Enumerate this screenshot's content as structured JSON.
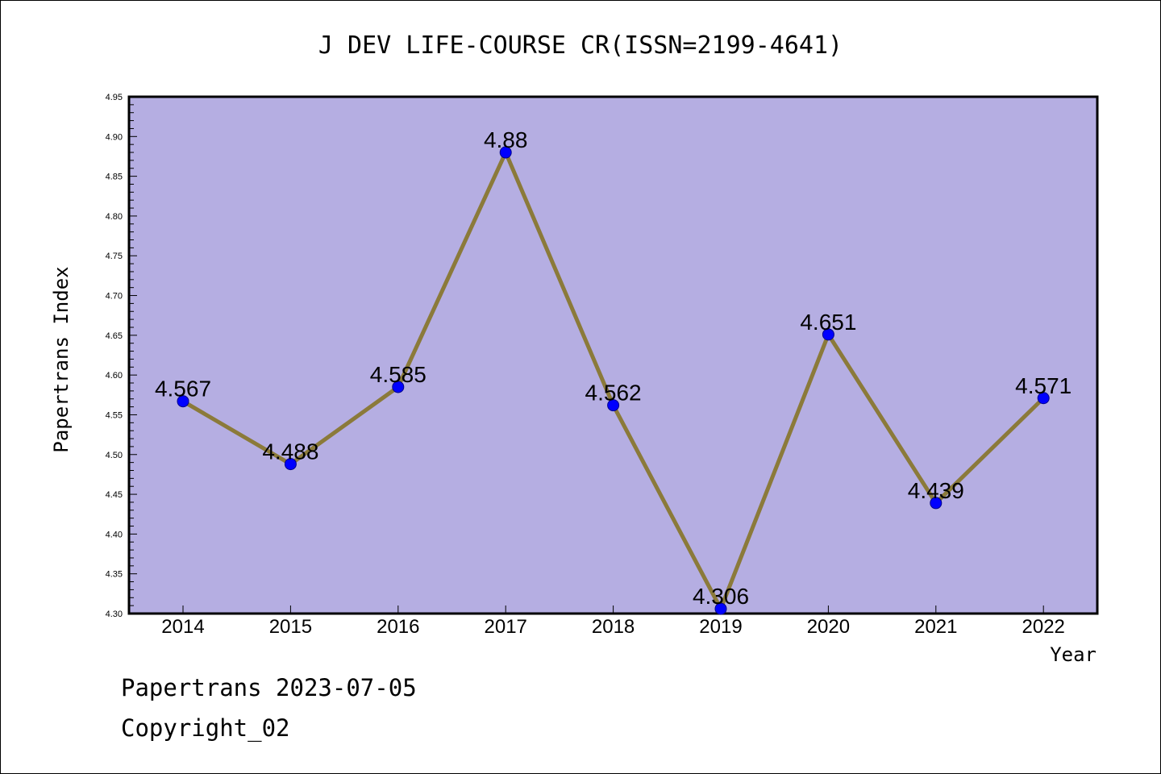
{
  "chart_data": {
    "type": "line",
    "title": "J DEV LIFE-COURSE CR(ISSN=2199-4641)",
    "xlabel": "Year",
    "ylabel": "Papertrans Index",
    "categories": [
      "2014",
      "2015",
      "2016",
      "2017",
      "2018",
      "2019",
      "2020",
      "2021",
      "2022"
    ],
    "series": [
      {
        "values": [
          4.567,
          4.488,
          4.585,
          4.88,
          4.562,
          4.306,
          4.651,
          4.439,
          4.571
        ]
      }
    ],
    "data_labels": [
      "4.567",
      "4.488",
      "4.585",
      "4.88",
      "4.562",
      "4.306",
      "4.651",
      "4.439",
      "4.571"
    ],
    "ylim": [
      4.3,
      4.95
    ],
    "yticks": [
      "4.30",
      "4.35",
      "4.40",
      "4.45",
      "4.50",
      "4.55",
      "4.60",
      "4.65",
      "4.70",
      "4.75",
      "4.80",
      "4.85",
      "4.90",
      "4.95"
    ],
    "grid": false,
    "legend": "none",
    "colors": {
      "plot_background": "#b5aee2",
      "line": "#8b7a3a",
      "marker": "#0000ff"
    }
  },
  "footer": {
    "line1": "Papertrans 2023-07-05",
    "line2": "Copyright_02"
  }
}
